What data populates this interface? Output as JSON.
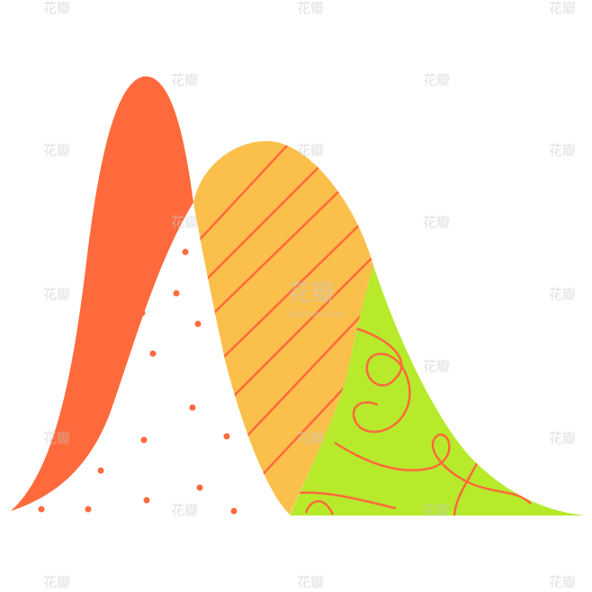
{
  "watermark": {
    "logo": "花瓣",
    "site": "huaban.com"
  }
}
